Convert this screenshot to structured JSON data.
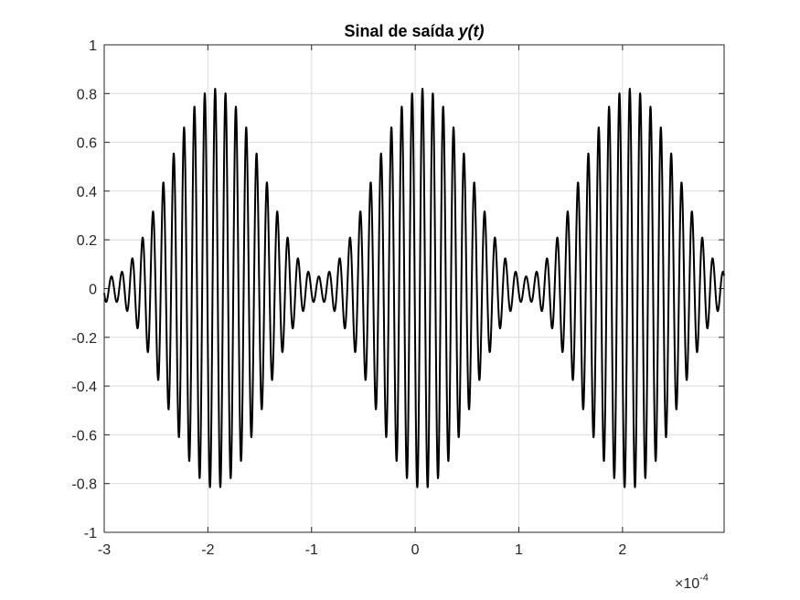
{
  "chart_data": {
    "type": "line",
    "title": "Sinal de saída",
    "title_var": "y(t)",
    "xlabel": "",
    "ylabel": "",
    "x_exponent_prefix": "×10",
    "x_exponent_power": "-4",
    "xlim": [
      -3,
      2.98
    ],
    "ylim": [
      -1,
      1
    ],
    "grid": true,
    "line_color": "#000000",
    "xticks": [
      -3,
      -2,
      -1,
      0,
      1,
      2
    ],
    "xtick_labels": [
      "-3",
      "-2",
      "-1",
      "0",
      "1",
      "2"
    ],
    "yticks": [
      -1,
      -0.8,
      -0.6,
      -0.4,
      -0.2,
      0,
      0.2,
      0.4,
      0.6,
      0.8,
      1
    ],
    "ytick_labels": [
      "-1",
      "-0.8",
      "-0.6",
      "-0.4",
      "-0.2",
      "0",
      "0.2",
      "0.4",
      "0.6",
      "0.8",
      "1"
    ],
    "series": [
      {
        "carrier_cycles_per_unit": 10,
        "envelope_period": 2,
        "envelope_peak_times": [
          -1.93,
          0.07,
          2.07
        ],
        "peak_amplitude": 0.82,
        "min_amplitude": 0.05
      }
    ]
  }
}
